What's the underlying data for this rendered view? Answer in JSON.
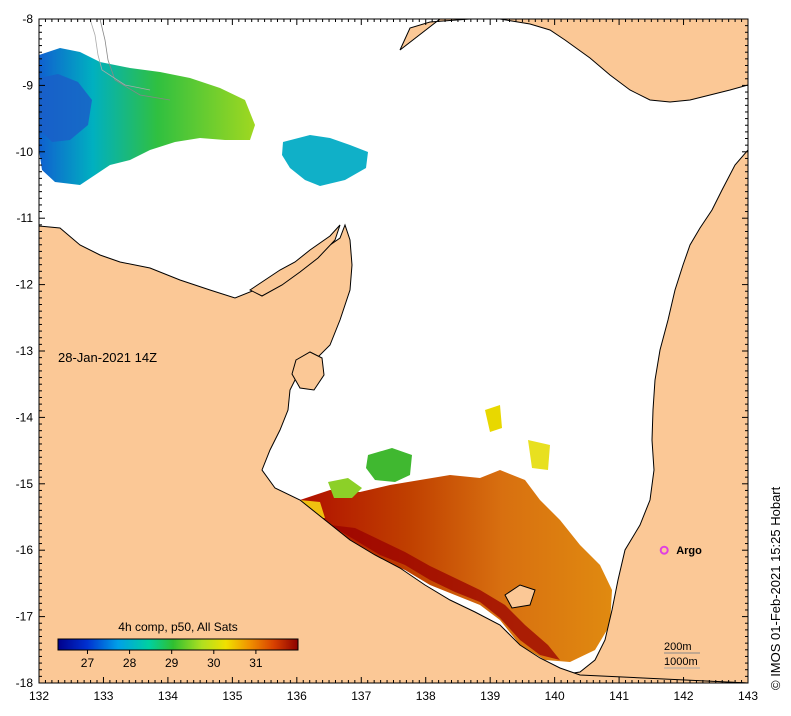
{
  "timestamp_label": "28-Jan-2021 14Z",
  "credit": "© IMOS 01-Feb-2021 15:25 Hobart",
  "argo": {
    "label": "Argo",
    "lon": 141.7,
    "lat": -16.0,
    "color": "#e040e0"
  },
  "colorbar": {
    "title": "4h comp, p50, All Sats",
    "vmin": 26.3,
    "vmax": 32.0,
    "ticks": [
      "27",
      "28",
      "29",
      "30",
      "31"
    ],
    "tick_values": [
      27,
      28,
      29,
      30,
      31
    ]
  },
  "depth_legend": [
    "200m",
    "1000m"
  ],
  "colors": {
    "land": "#fbc896",
    "ocean": "#ffffff",
    "coast": "#000000"
  },
  "axes": {
    "lon_range": [
      132,
      143
    ],
    "lat_range": [
      -18,
      -8
    ],
    "lon_ticks": [
      "132",
      "133",
      "134",
      "135",
      "136",
      "137",
      "138",
      "139",
      "140",
      "141",
      "142",
      "143"
    ],
    "lat_ticks": [
      "-8",
      "-9",
      "-10",
      "-11",
      "-12",
      "-13",
      "-14",
      "-15",
      "-16",
      "-17",
      "-18"
    ]
  }
}
